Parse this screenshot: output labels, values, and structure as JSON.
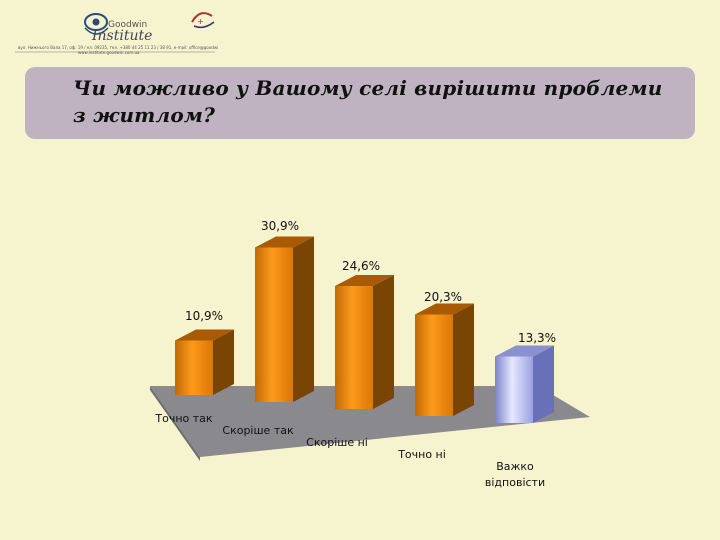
{
  "logo": {
    "brand_top": "Goodwin",
    "brand_bottom": "Institute",
    "contact": "вул. Нижнього Вала 17, оф. 19 / ел. 09235, тел. +380 44 25 11 23 / 38 91, е-mail: office@goodwin.com.ua",
    "website": "www.institute.goodwin.com.ua"
  },
  "title": "Чи можливо у Вашому селі вирішити проблеми з житлом?",
  "colors": {
    "bar_main": "#f08c10",
    "bar_last": "#a9aee8",
    "floor": "#8a8a8e"
  },
  "chart_data": {
    "type": "bar",
    "categories": [
      "Точно так",
      "Скоріше так",
      "Скоріше ні",
      "Точно ні",
      "Важко відповісти"
    ],
    "values": [
      10.9,
      30.9,
      24.6,
      20.3,
      13.3
    ],
    "value_labels": [
      "10,9%",
      "30,9%",
      "24,6%",
      "20,3%",
      "13,3%"
    ],
    "unit": "%",
    "title": "",
    "xlabel": "",
    "ylabel": "",
    "grid": false,
    "legend": "none"
  }
}
